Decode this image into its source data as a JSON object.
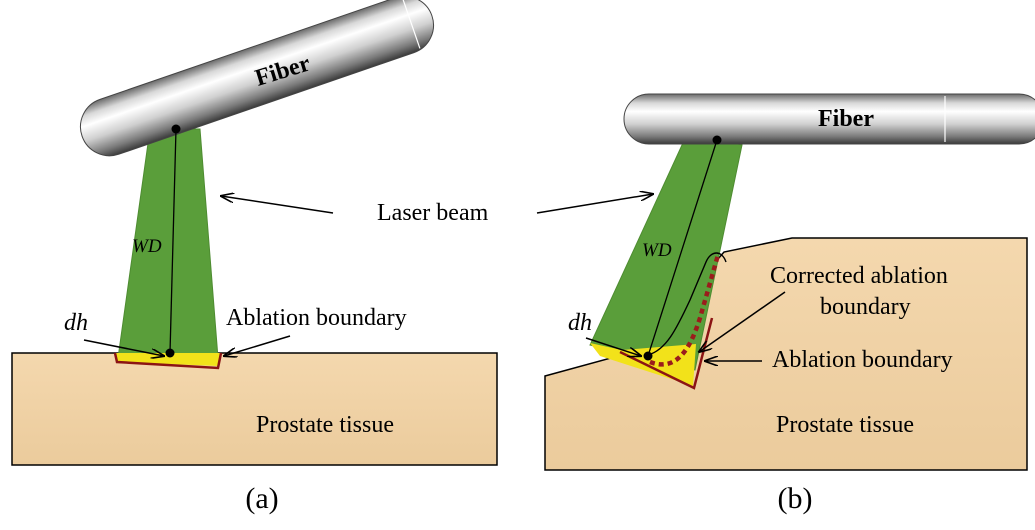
{
  "panel_a": {
    "fiber_label": "Fiber",
    "wd_label": "WD",
    "dh_label": "dh",
    "ablation_label": "Ablation boundary",
    "tissue_label": "Prostate tissue",
    "caption": "(a)"
  },
  "shared": {
    "laser_label": "Laser beam"
  },
  "panel_b": {
    "fiber_label": "Fiber",
    "wd_label": "WD",
    "dh_label": "dh",
    "corrected_label_line1": "Corrected ablation",
    "corrected_label_line2": "boundary",
    "ablation_label": "Ablation boundary",
    "tissue_label": "Prostate tissue",
    "caption": "(b)"
  },
  "colors": {
    "beam": "#5a9e3a",
    "tissue": "#f1d3a6",
    "ablation_fill": "#f2e21a",
    "ablation_edge": "#8b1414",
    "corrected_boundary": "#9b1c1c"
  }
}
